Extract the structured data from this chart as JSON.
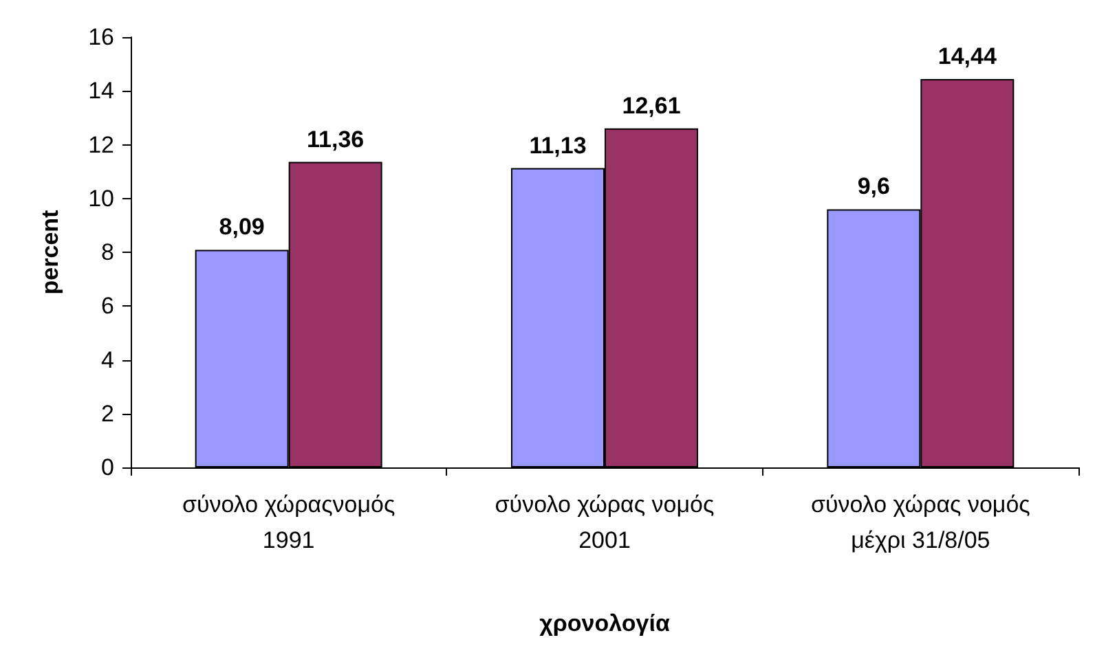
{
  "chart_data": {
    "type": "bar",
    "xlabel": "χρονολογία",
    "ylabel": "percent",
    "categories": [
      "σύνολο χώραςνομός\n1991",
      "σύνολο χώρας νομός\n2001",
      "σύνολο χώρας νομός\nμέχρι 31/8/05"
    ],
    "series": [
      {
        "color": "#9999ff",
        "values": [
          8.09,
          11.13,
          9.6
        ],
        "value_labels": [
          "8,09",
          "11,13",
          "9,6"
        ]
      },
      {
        "color": "#993366",
        "values": [
          11.36,
          12.61,
          14.44
        ],
        "value_labels": [
          "11,36",
          "12,61",
          "14,44"
        ]
      }
    ],
    "ylim": [
      0,
      16
    ],
    "yticks": [
      0,
      2,
      4,
      6,
      8,
      10,
      12,
      14,
      16
    ],
    "grid": false
  }
}
